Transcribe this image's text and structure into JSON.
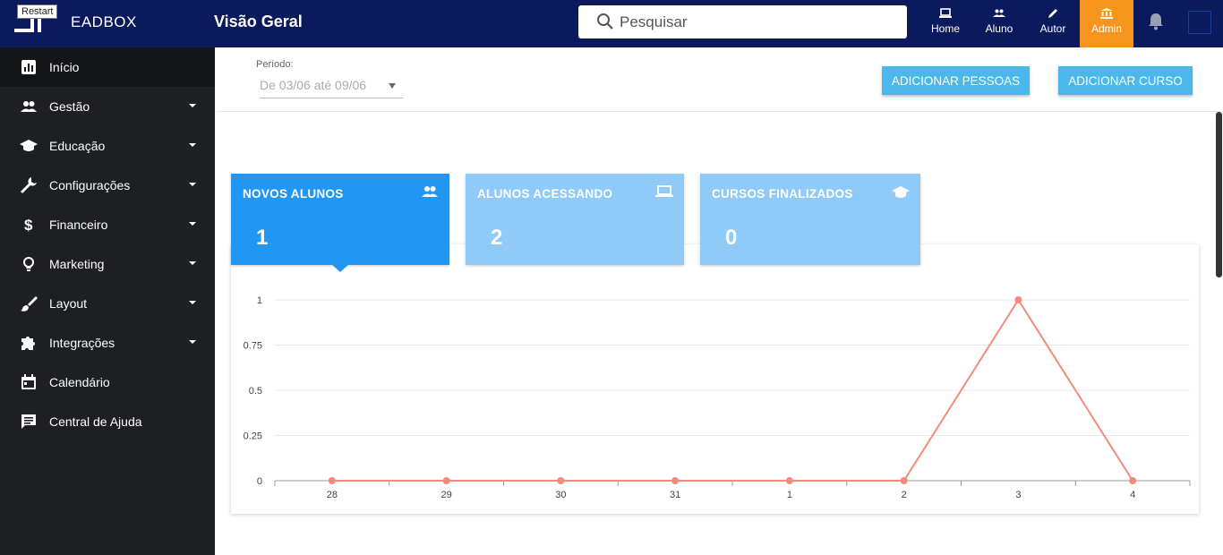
{
  "tooltip": "Restart",
  "brand": {
    "name": "EADBOX"
  },
  "header": {
    "title": "Visão Geral",
    "search_placeholder": "Pesquisar",
    "nav": [
      {
        "label": "Home",
        "icon": "laptop-icon"
      },
      {
        "label": "Aluno",
        "icon": "people-icon"
      },
      {
        "label": "Autor",
        "icon": "pencil-icon"
      },
      {
        "label": "Admin",
        "icon": "bank-icon",
        "active": true
      }
    ],
    "accent_color": "#f7941d",
    "bar_color": "#0a1a5c"
  },
  "sidebar": {
    "items": [
      {
        "label": "Início",
        "icon": "chart-icon",
        "active": true
      },
      {
        "label": "Gestão",
        "icon": "people-icon",
        "expandable": true
      },
      {
        "label": "Educação",
        "icon": "graduation-cap-icon",
        "expandable": true
      },
      {
        "label": "Configurações",
        "icon": "wrench-icon",
        "expandable": true
      },
      {
        "label": "Financeiro",
        "icon": "dollar-icon",
        "expandable": true
      },
      {
        "label": "Marketing",
        "icon": "lightbulb-icon",
        "expandable": true
      },
      {
        "label": "Layout",
        "icon": "brush-icon",
        "expandable": true
      },
      {
        "label": "Integrações",
        "icon": "puzzle-icon",
        "expandable": true
      },
      {
        "label": "Calendário",
        "icon": "calendar-icon"
      },
      {
        "label": "Central de Ajuda",
        "icon": "chat-icon"
      }
    ]
  },
  "period": {
    "label": "Período:",
    "value": "De 03/06 até 09/06"
  },
  "actions": {
    "add_people": "ADICIONAR PESSOAS",
    "add_course": "ADICIONAR CURSO"
  },
  "stats": [
    {
      "title": "NOVOS ALUNOS",
      "value": "1",
      "icon": "people-icon",
      "active": true
    },
    {
      "title": "ALUNOS ACESSANDO",
      "value": "2",
      "icon": "laptop-icon"
    },
    {
      "title": "CURSOS FINALIZADOS",
      "value": "0",
      "icon": "graduation-cap-icon"
    }
  ],
  "chart_data": {
    "type": "line",
    "categories": [
      "28",
      "29",
      "30",
      "31",
      "1",
      "2",
      "3",
      "4"
    ],
    "series": [
      {
        "values": [
          0,
          0,
          0,
          0,
          0,
          0,
          1,
          0
        ],
        "color": "#f28b7d"
      }
    ],
    "yticks": [
      "0",
      "0.25",
      "0.5",
      "0.75",
      "1"
    ],
    "ylim": [
      0,
      1
    ],
    "grid": true,
    "title": "",
    "xlabel": "",
    "ylabel": ""
  }
}
